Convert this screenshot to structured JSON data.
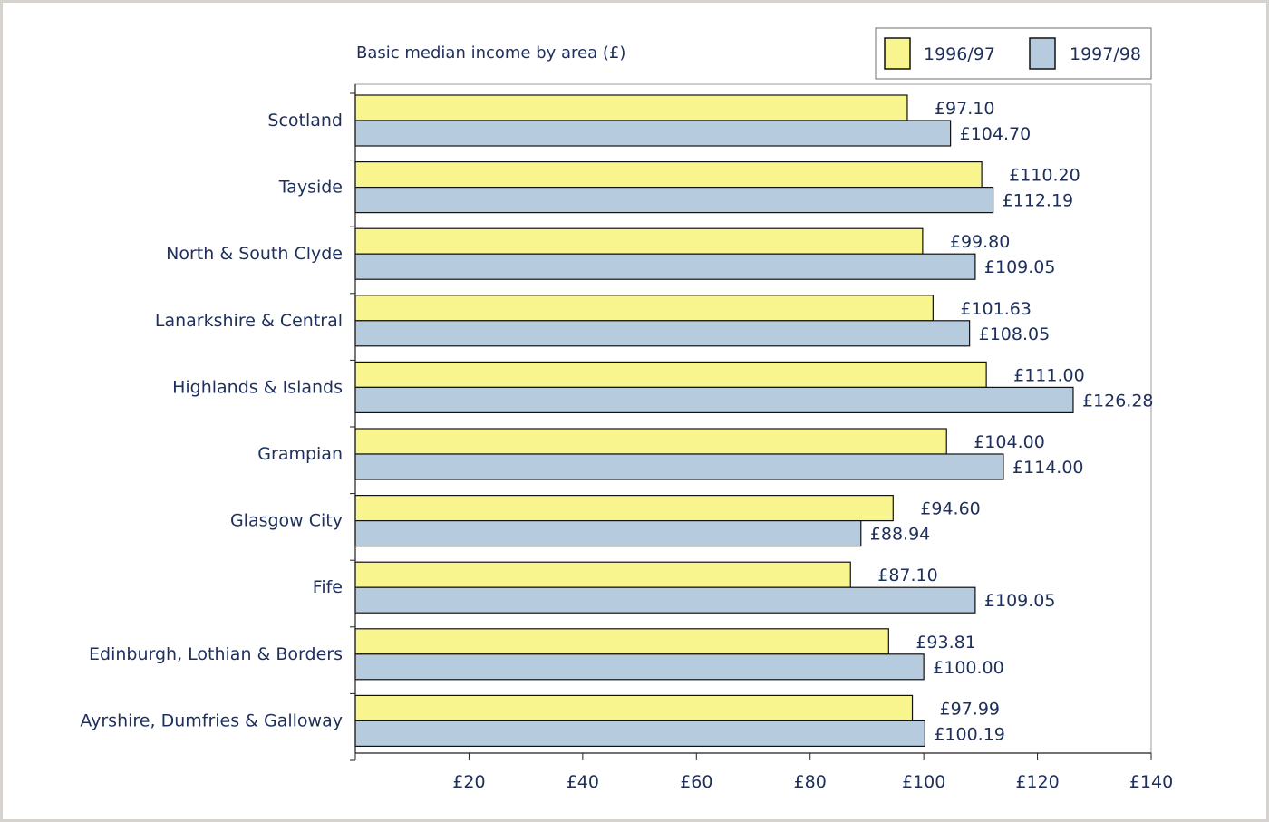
{
  "chart_data": {
    "type": "bar",
    "orientation": "horizontal",
    "title": "Basic median income by area (£)",
    "categories": [
      "Scotland",
      "Tayside",
      "North & South Clyde",
      "Lanarkshire & Central",
      "Highlands & Islands",
      "Grampian",
      "Glasgow City",
      "Fife",
      "Edinburgh, Lothian & Borders",
      "Ayrshire, Dumfries & Galloway"
    ],
    "series": [
      {
        "name": "1996/97",
        "color": "#f8f58f",
        "values": [
          97.1,
          110.2,
          99.8,
          101.63,
          111.0,
          104.0,
          94.6,
          87.1,
          93.81,
          97.99
        ],
        "labels": [
          "£97.10",
          "£110.20",
          "£99.80",
          "£101.63",
          "£111.00",
          "£104.00",
          "£94.60",
          "£87.10",
          "£93.81",
          "£97.99"
        ]
      },
      {
        "name": "1997/98",
        "color": "#b7cbdf",
        "values": [
          104.7,
          112.19,
          109.05,
          108.05,
          126.28,
          114.0,
          88.94,
          109.05,
          100.0,
          100.19
        ],
        "labels": [
          "£104.70",
          "£112.19",
          "£109.05",
          "£108.05",
          "£126.28",
          "£114.00",
          "£88.94",
          "£109.05",
          "£100.00",
          "£100.19"
        ]
      }
    ],
    "xlim": [
      0,
      140
    ],
    "xticks": [
      20,
      40,
      60,
      80,
      100,
      120,
      140
    ],
    "xtick_labels": [
      "£20",
      "£40",
      "£60",
      "£80",
      "£100",
      "£120",
      "£140"
    ],
    "grid": false,
    "legend_position": "top-right",
    "colors": {
      "text": "#1e2f5c",
      "axis": "#1f1f1f",
      "border": "#9e9e9e"
    }
  }
}
